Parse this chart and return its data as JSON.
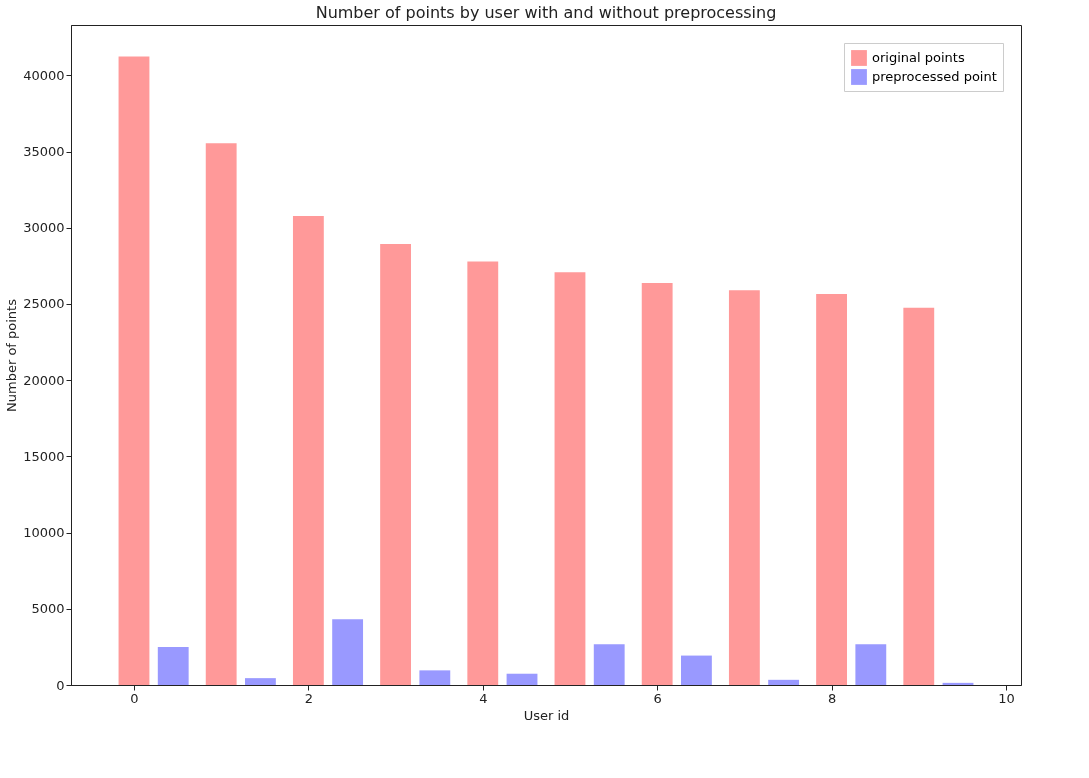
{
  "chart_data": {
    "type": "bar",
    "title": "Number of points by user with and without preprocessing",
    "xlabel": "User id",
    "ylabel": "Number of points",
    "x": [
      0,
      1,
      2,
      3,
      4,
      5,
      6,
      7,
      8,
      9
    ],
    "series": [
      {
        "name": "original points",
        "color": "#ff9999",
        "values": [
          41230,
          35550,
          30770,
          28930,
          27790,
          27080,
          26370,
          25890,
          25660,
          24750
        ]
      },
      {
        "name": "preprocessed point",
        "color": "#9999ff",
        "x": [
          0.45,
          1.45,
          2.45,
          3.45,
          4.45,
          5.45,
          6.45,
          7.45,
          8.45,
          9.45
        ],
        "values": [
          2500,
          450,
          4320,
          960,
          740,
          2670,
          1930,
          340,
          2670,
          140
        ]
      }
    ],
    "xlim": [
      -0.665,
      10.115
    ],
    "xticks": [
      0,
      2,
      4,
      6,
      8,
      10
    ],
    "ylim": [
      0,
      43300
    ],
    "yticks": [
      0,
      5000,
      10000,
      15000,
      20000,
      25000,
      30000,
      35000,
      40000
    ],
    "grid": false,
    "legend": "top right"
  }
}
